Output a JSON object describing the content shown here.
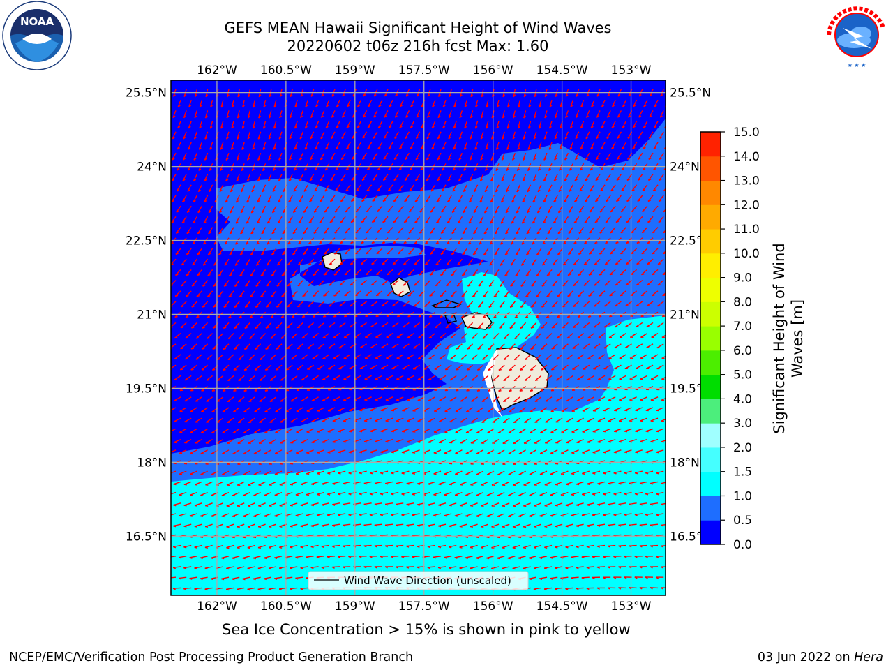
{
  "header": {
    "title_line1": "GEFS MEAN Hawaii Significant Height of Wind Waves",
    "title_line2": "20220602 t06z 216h fcst   Max: 1.60"
  },
  "logos": {
    "noaa": "NOAA",
    "noaa_ring_text": "NATIONAL OCEANIC AND ATMOSPHERIC ADMINISTRATION · U.S. DEPARTMENT OF COMMERCE",
    "nws_ring_text": "NATIONAL WEATHER SERVICE"
  },
  "map": {
    "lon_ticks": [
      "162°W",
      "160.5°W",
      "159°W",
      "157.5°W",
      "156°W",
      "154.5°W",
      "153°W"
    ],
    "lat_ticks": [
      "25.5°N",
      "24°N",
      "22.5°N",
      "21°N",
      "19.5°N",
      "18°N",
      "16.5°N"
    ],
    "lon_range": [
      -163,
      -152.25
    ],
    "lat_range": [
      15.3,
      25.75
    ],
    "legend": "Wind Wave Direction (unscaled)",
    "colors": {
      "band_0_0_5": "#0000ff",
      "band_0_5_1_0": "#1e6eff",
      "band_1_0_1_5": "#00ffff",
      "land": "#f0ecdc",
      "arrows": "#ff0000",
      "grid": "#aaaaaa"
    }
  },
  "colorbar": {
    "label": "Significant Height of Wind Waves [m]",
    "label_line1": "Significant Height of Wind",
    "label_line2": "Waves [m]",
    "ticks": [
      "0.0",
      "0.5",
      "1.0",
      "1.5",
      "2.0",
      "3.0",
      "4.0",
      "5.0",
      "6.0",
      "7.0",
      "8.0",
      "9.0",
      "10.0",
      "11.0",
      "12.0",
      "13.0",
      "14.0",
      "15.0"
    ],
    "colors": [
      "#0000ff",
      "#1e6eff",
      "#00ffff",
      "#45ffff",
      "#a0ffff",
      "#4cee7c",
      "#00dd00",
      "#4cee00",
      "#99ff00",
      "#ccff00",
      "#eeff00",
      "#ffee00",
      "#ffcc00",
      "#ffaa00",
      "#ff8800",
      "#ff5500",
      "#ff2200",
      "#ff0000"
    ]
  },
  "footer": {
    "ice_note": "Sea Ice Concentration > 15% is shown in pink to yellow",
    "left": "NCEP/EMC/Verification Post Processing Product Generation Branch",
    "right_date": "03 Jun 2022 on",
    "right_host": "Hera"
  }
}
